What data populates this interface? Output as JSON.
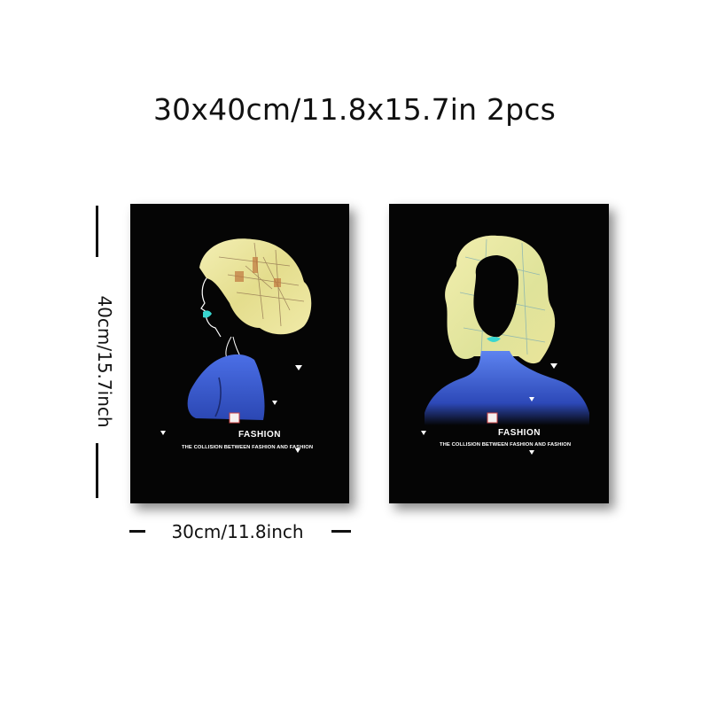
{
  "title": "30x40cm/11.8x15.7in 2pcs",
  "dimensions": {
    "height_label": "40cm/15.7inch",
    "width_label": "30cm/11.8inch"
  },
  "panels": [
    {
      "caption": "FASHION",
      "subcaption": "THE COLLISION BETWEEN FASHION AND FASHION",
      "pose": "profile"
    },
    {
      "caption": "FASHION",
      "subcaption": "THE COLLISION BETWEEN FASHION AND FASHION",
      "pose": "front"
    }
  ],
  "colors": {
    "canvas": "#050505",
    "hair": "#ece8a6",
    "dress": "#3a5ed6",
    "lips": "#39d6d0"
  }
}
